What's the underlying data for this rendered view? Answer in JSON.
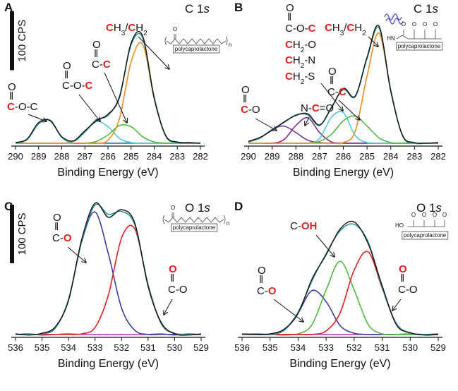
{
  "chart_data": [
    {
      "type": "line",
      "label": "A",
      "title": [
        "C 1",
        "s"
      ],
      "xlabel": "Binding Energy (eV)",
      "x": [
        290,
        289.5,
        289,
        288.5,
        288,
        287.5,
        287,
        286.5,
        286,
        285.5,
        285,
        284.5,
        284,
        283.5,
        283,
        282.5,
        282
      ],
      "xlim": [
        290,
        282
      ],
      "xticks": [
        290,
        289,
        288,
        287,
        286,
        285,
        284,
        283,
        282
      ],
      "ylim": [
        -5,
        200
      ],
      "scale_bar": {
        "value": 100,
        "label": "100 CPS"
      },
      "series": [
        {
          "color": "#3a3aa8",
          "values": [
            0,
            0,
            0,
            0,
            0,
            0,
            0,
            0,
            0,
            0,
            0,
            0,
            0,
            0,
            0,
            0,
            0
          ]
        },
        {
          "color": "#2b7fb0",
          "values": [
            0,
            6,
            33,
            39,
            10,
            0,
            0,
            0,
            0,
            0,
            0,
            0,
            0,
            0,
            0,
            0,
            0
          ]
        },
        {
          "color": "#55c8dc",
          "values": [
            0,
            0,
            0,
            0,
            0,
            3,
            19,
            37,
            28,
            8,
            1,
            0,
            0,
            0,
            0,
            0,
            0
          ]
        },
        {
          "color": "#4cbb3c",
          "values": [
            0,
            0,
            0,
            0,
            0,
            0,
            0,
            3,
            14,
            30,
            28,
            11,
            2,
            0,
            0,
            0,
            0
          ]
        },
        {
          "color": "#f08c1e",
          "values": [
            0,
            0,
            0,
            0,
            0,
            0,
            0,
            0,
            5,
            42,
            138,
            168,
            76,
            12,
            1,
            0,
            0
          ]
        },
        {
          "color": "#2a9d9a",
          "values": [
            0,
            6,
            33,
            39,
            10,
            3,
            19,
            40,
            47,
            80,
            167,
            179,
            78,
            12,
            1,
            0,
            0
          ]
        },
        {
          "color": "#111111",
          "values": [
            1,
            7,
            35,
            38,
            11,
            4,
            21,
            38,
            49,
            78,
            170,
            182,
            76,
            13,
            2,
            1,
            0
          ]
        }
      ],
      "annotations": [
        [
          [
            "O"
          ],
          [
            "‖"
          ],
          [
            "C",
            "-O-C"
          ]
        ],
        [
          [
            "O"
          ],
          [
            "‖"
          ],
          [
            "C-O-",
            "C"
          ]
        ],
        [
          [
            "O"
          ],
          [
            "‖"
          ],
          [
            "C-",
            "C"
          ]
        ],
        [
          [
            "C",
            "H",
            "3",
            "/",
            "C",
            "H",
            "2"
          ]
        ]
      ],
      "inset": [
        "O",
        "polycaprolactone",
        "n"
      ]
    },
    {
      "type": "line",
      "label": "B",
      "title": [
        "C 1",
        "s"
      ],
      "xlabel": "Binding Energy (eV)",
      "x": [
        290,
        289.5,
        289,
        288.5,
        288,
        287.5,
        287,
        286.5,
        286,
        285.5,
        285,
        284.5,
        284,
        283.5,
        283,
        282.5,
        282
      ],
      "xlim": [
        290,
        282
      ],
      "xticks": [
        290,
        289,
        288,
        287,
        286,
        285,
        284,
        283,
        282
      ],
      "ylim": [
        -5,
        200
      ],
      "series": [
        {
          "color": "#b040b0",
          "values": [
            0,
            0,
            0,
            0,
            0,
            0,
            0,
            0,
            0,
            0,
            0,
            0,
            0,
            0,
            0,
            0,
            0
          ]
        },
        {
          "color": "#6a3a9a",
          "values": [
            2,
            9,
            23,
            29,
            18,
            5,
            1,
            0,
            0,
            0,
            0,
            0,
            0,
            0,
            0,
            0,
            0
          ]
        },
        {
          "color": "#8a2b8a",
          "values": [
            0,
            0,
            0,
            6,
            30,
            43,
            18,
            2,
            0,
            0,
            0,
            0,
            0,
            0,
            0,
            0,
            0
          ]
        },
        {
          "color": "#55c8dc",
          "values": [
            0,
            0,
            0,
            0,
            0,
            0,
            8,
            44,
            52,
            13,
            1,
            0,
            0,
            0,
            0,
            0,
            0
          ]
        },
        {
          "color": "#4cbb3c",
          "values": [
            0,
            0,
            0,
            0,
            0,
            0,
            3,
            15,
            38,
            46,
            29,
            9,
            1,
            0,
            0,
            0,
            0
          ]
        },
        {
          "color": "#f08c1e",
          "values": [
            0,
            0,
            0,
            0,
            0,
            0,
            0,
            0,
            1,
            20,
            114,
            187,
            89,
            12,
            0,
            0,
            0
          ]
        },
        {
          "color": "#2a9d9a",
          "values": [
            2,
            9,
            23,
            35,
            48,
            48,
            30,
            61,
            91,
            79,
            144,
            196,
            90,
            12,
            0,
            0,
            0
          ]
        },
        {
          "color": "#111111",
          "values": [
            3,
            10,
            22,
            36,
            47,
            50,
            31,
            60,
            93,
            80,
            146,
            199,
            88,
            13,
            1,
            0,
            1
          ]
        }
      ],
      "annotations": [
        [
          [
            "O"
          ],
          [
            "‖"
          ],
          [
            "C-O-",
            "C"
          ],
          [
            "C",
            "H",
            "2",
            "-O"
          ],
          [
            "C",
            "H",
            "2",
            "-N"
          ],
          [
            "C",
            "H",
            "2",
            "-S"
          ]
        ],
        [
          [
            "O"
          ],
          [
            "‖"
          ],
          [
            "C-",
            "C"
          ]
        ],
        [
          [
            "N-",
            "C",
            "=O"
          ]
        ],
        [
          [
            "O"
          ],
          [
            "‖"
          ],
          [
            "C",
            "-O"
          ]
        ],
        [
          [
            "C",
            "H",
            "3",
            "/",
            "C",
            "H",
            "2"
          ]
        ]
      ],
      "inset": [
        "HN",
        "O",
        "polycaprolactone"
      ]
    },
    {
      "type": "line",
      "label": "C",
      "title": [
        "O 1",
        "s"
      ],
      "xlabel": "Binding Energy (eV)",
      "x": [
        536,
        535.5,
        535,
        534.5,
        534,
        533.5,
        533,
        532.5,
        532,
        531.5,
        531,
        530.5,
        530,
        529.5,
        529
      ],
      "xlim": [
        536,
        529
      ],
      "xticks": [
        536,
        535,
        534,
        533,
        532,
        531,
        530,
        529
      ],
      "ylim": [
        -5,
        230
      ],
      "scale_bar": {
        "value": 100,
        "label": "100 CPS"
      },
      "series": [
        {
          "color": "#c040c0",
          "values": [
            0,
            1,
            -1,
            0,
            1,
            0,
            0,
            0,
            0,
            0,
            0,
            1,
            -1,
            1,
            0
          ]
        },
        {
          "color": "#3c3ca0",
          "values": [
            0,
            0,
            1,
            11,
            60,
            159,
            209,
            138,
            45,
            7,
            0,
            0,
            0,
            0,
            0
          ]
        },
        {
          "color": "#e02020",
          "values": [
            0,
            0,
            0,
            0,
            0,
            1,
            12,
            67,
            165,
            180,
            85,
            18,
            2,
            0,
            0
          ]
        },
        {
          "color": "#2a9d9a",
          "values": [
            0,
            0,
            1,
            11,
            60,
            160,
            221,
            205,
            210,
            187,
            85,
            18,
            2,
            0,
            0
          ]
        },
        {
          "color": "#111111",
          "values": [
            1,
            -1,
            2,
            13,
            58,
            163,
            224,
            200,
            213,
            190,
            82,
            20,
            1,
            -1,
            1
          ]
        }
      ],
      "annotations": [
        [
          [
            "O"
          ],
          [
            "‖"
          ],
          [
            "C-",
            "O"
          ]
        ],
        [
          [
            "O"
          ],
          [
            "‖"
          ],
          [
            "C-O"
          ]
        ]
      ],
      "inset": [
        "O",
        "polycaprolactone",
        "n"
      ]
    },
    {
      "type": "line",
      "label": "D",
      "title": [
        "O 1",
        "s"
      ],
      "xlabel": "Binding Energy (eV)",
      "x": [
        536,
        535.5,
        535,
        534.5,
        534,
        533.5,
        533,
        532.5,
        532,
        531.5,
        531,
        530.5,
        530,
        529.5,
        529
      ],
      "xlim": [
        536,
        529
      ],
      "xticks": [
        536,
        535,
        534,
        533,
        532,
        531,
        530,
        529
      ],
      "ylim": [
        -5,
        230
      ],
      "series": [
        {
          "color": "#c040c0",
          "values": [
            0,
            1,
            0,
            -1,
            0,
            0,
            0,
            0,
            0,
            0,
            0,
            0,
            1,
            0,
            1
          ]
        },
        {
          "color": "#3c3ca0",
          "values": [
            0,
            0,
            0,
            7,
            37,
            75,
            56,
            15,
            2,
            0,
            0,
            0,
            0,
            0,
            0
          ]
        },
        {
          "color": "#4cbb3c",
          "values": [
            0,
            0,
            0,
            0,
            1,
            17,
            76,
            125,
            76,
            17,
            1,
            0,
            0,
            0,
            0
          ]
        },
        {
          "color": "#e02020",
          "values": [
            0,
            0,
            0,
            0,
            0,
            0,
            6,
            37,
            110,
            141,
            79,
            19,
            2,
            0,
            0
          ]
        },
        {
          "color": "#2a9d9a",
          "values": [
            0,
            0,
            0,
            7,
            38,
            92,
            138,
            177,
            188,
            158,
            80,
            19,
            2,
            0,
            0
          ]
        },
        {
          "color": "#111111",
          "values": [
            1,
            0,
            1,
            9,
            36,
            95,
            136,
            180,
            192,
            155,
            83,
            17,
            3,
            -1,
            0
          ]
        }
      ],
      "annotations": [
        [
          [
            "C-",
            "OH"
          ]
        ],
        [
          [
            "O"
          ],
          [
            "‖"
          ],
          [
            "C-",
            "O"
          ]
        ],
        [
          [
            "O"
          ],
          [
            "‖"
          ],
          [
            "C-O"
          ]
        ]
      ],
      "inset": [
        "HO",
        "O",
        "polycaprolactone"
      ]
    }
  ]
}
